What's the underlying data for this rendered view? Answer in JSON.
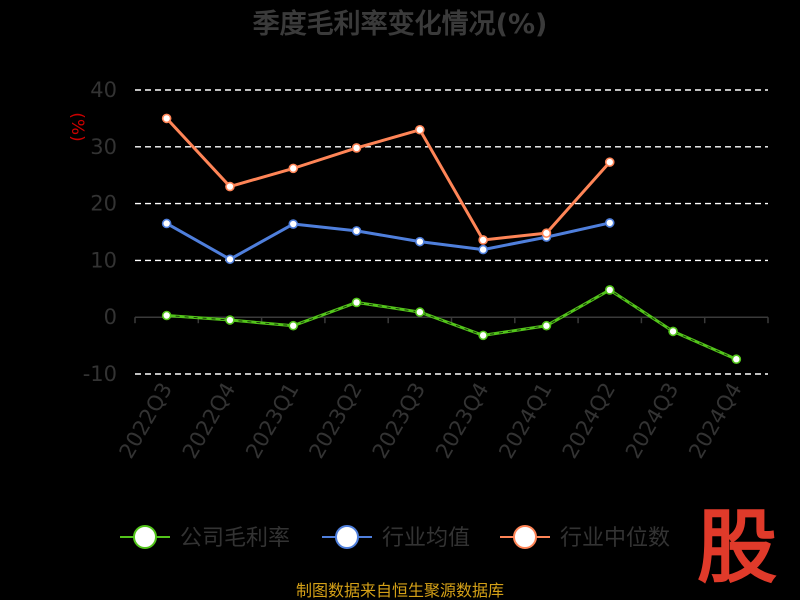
{
  "chart_data": {
    "type": "line",
    "title": "季度毛利率变化情况(%)",
    "ylabel": "(%)",
    "ylim": [
      -10,
      40
    ],
    "yticks": [
      40,
      30,
      20,
      10,
      0,
      -10
    ],
    "categories": [
      "2022Q3",
      "2022Q4",
      "2023Q1",
      "2023Q2",
      "2023Q3",
      "2023Q4",
      "2024Q1",
      "2024Q2",
      "2024Q3",
      "2024Q4"
    ],
    "grid": true,
    "legend_position": "bottom",
    "series": [
      {
        "name": "公司毛利率",
        "color": "#52c41a",
        "values": [
          0.3,
          -0.5,
          -1.5,
          2.6,
          0.9,
          -3.2,
          -1.5,
          4.8,
          -2.5,
          -7.4
        ]
      },
      {
        "name": "行业均值",
        "color": "#4f7fdc",
        "values": [
          16.5,
          10.2,
          16.4,
          15.2,
          13.3,
          11.9,
          14.1,
          16.6,
          null,
          null
        ]
      },
      {
        "name": "行业中位数",
        "color": "#ff8557",
        "values": [
          35.0,
          23.0,
          26.2,
          29.8,
          33.0,
          13.6,
          14.8,
          27.3,
          null,
          null
        ]
      }
    ]
  },
  "footer": {
    "source": "制图数据来自恒生聚源数据库",
    "brand": "股"
  }
}
